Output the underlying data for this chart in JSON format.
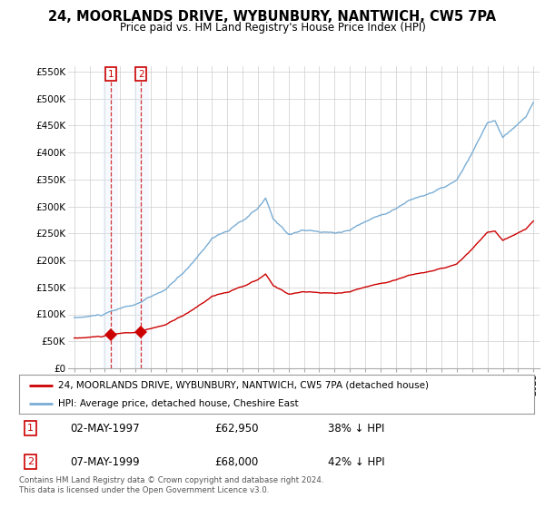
{
  "title": "24, MOORLANDS DRIVE, WYBUNBURY, NANTWICH, CW5 7PA",
  "subtitle": "Price paid vs. HM Land Registry's House Price Index (HPI)",
  "ylim": [
    0,
    560000
  ],
  "yticks": [
    0,
    50000,
    100000,
    150000,
    200000,
    250000,
    300000,
    350000,
    400000,
    450000,
    500000,
    550000
  ],
  "ytick_labels": [
    "£0",
    "£50K",
    "£100K",
    "£150K",
    "£200K",
    "£250K",
    "£300K",
    "£350K",
    "£400K",
    "£450K",
    "£500K",
    "£550K"
  ],
  "sale1_year": 1997.37,
  "sale1_price": 62950,
  "sale1_date": "02-MAY-1997",
  "sale1_pct": "38% ↓ HPI",
  "sale2_year": 1999.37,
  "sale2_price": 68000,
  "sale2_date": "07-MAY-1999",
  "sale2_pct": "42% ↓ HPI",
  "legend1": "24, MOORLANDS DRIVE, WYBUNBURY, NANTWICH, CW5 7PA (detached house)",
  "legend2": "HPI: Average price, detached house, Cheshire East",
  "footnote": "Contains HM Land Registry data © Crown copyright and database right 2024.\nThis data is licensed under the Open Government Licence v3.0.",
  "line_color_red": "#cc0000",
  "line_color_blue": "#7aadd4",
  "shade_color": "#ddeeff",
  "background_color": "#ffffff",
  "grid_color": "#cccccc"
}
